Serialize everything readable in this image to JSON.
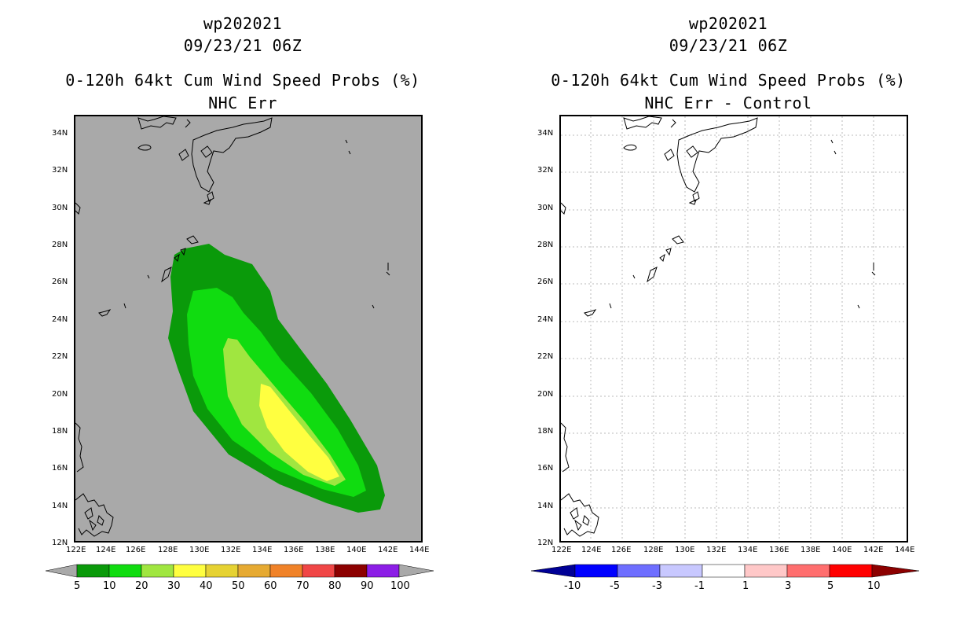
{
  "left": {
    "title_line1": "wp202021",
    "title_line2": "09/23/21 06Z",
    "title_line3": "0-120h 64kt Cum Wind Speed Probs (%)",
    "title_line4": "NHC Err",
    "background_color": "#a9a9a9",
    "colorbar": {
      "labels": [
        "5",
        "10",
        "20",
        "30",
        "40",
        "50",
        "60",
        "70",
        "80",
        "90",
        "100"
      ],
      "colors": [
        "#a9a9a9",
        "#0a9a0a",
        "#10dc10",
        "#a0e640",
        "#ffff40",
        "#e6d232",
        "#e6aa32",
        "#f08228",
        "#f04646",
        "#8c0000",
        "#8c1ee6",
        "#a9a9a9"
      ]
    }
  },
  "right": {
    "title_line1": "wp202021",
    "title_line2": "09/23/21 06Z",
    "title_line3": "0-120h 64kt Cum Wind Speed Probs (%)",
    "title_line4": "NHC Err - Control",
    "background_color": "#ffffff",
    "colorbar": {
      "labels": [
        "-10",
        "-5",
        "-3",
        "-1",
        "1",
        "3",
        "5",
        "10"
      ],
      "colors": [
        "#000096",
        "#0000ff",
        "#6e6eff",
        "#c8c8ff",
        "#ffffff",
        "#ffc8c8",
        "#ff6e6e",
        "#ff0000",
        "#8c0000"
      ]
    }
  },
  "axes": {
    "lat_labels": [
      "34N",
      "32N",
      "30N",
      "28N",
      "26N",
      "24N",
      "22N",
      "20N",
      "18N",
      "16N",
      "14N",
      "12N"
    ],
    "lon_labels": [
      "122E",
      "124E",
      "126E",
      "128E",
      "130E",
      "132E",
      "134E",
      "136E",
      "138E",
      "140E",
      "142E",
      "144E"
    ],
    "lat_values": [
      34,
      32,
      30,
      28,
      26,
      24,
      22,
      20,
      18,
      16,
      14,
      12
    ],
    "lon_values": [
      122,
      124,
      126,
      128,
      130,
      132,
      134,
      136,
      138,
      140,
      142,
      144
    ]
  }
}
